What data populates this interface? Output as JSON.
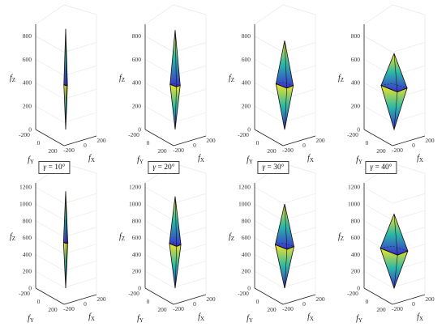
{
  "chart_data": [
    {
      "type": "3d-surface",
      "row": 1,
      "gamma": "10°",
      "zticks": [
        "0",
        "200",
        "400",
        "600",
        "800"
      ],
      "zrange": [
        0,
        900
      ],
      "apex_top": 860,
      "apex_bottom": 0,
      "mid_z": 380,
      "half_width": 25,
      "xticks": [
        "-200",
        "0",
        "200"
      ],
      "yticks": [
        "-200",
        "0",
        "200"
      ],
      "xlabel": "f_X",
      "ylabel": "f_Y",
      "zlabel": "f_Z"
    },
    {
      "type": "3d-surface",
      "row": 1,
      "gamma": "20°",
      "zticks": [
        "0",
        "200",
        "400",
        "600",
        "800"
      ],
      "zrange": [
        0,
        900
      ],
      "apex_top": 850,
      "apex_bottom": 0,
      "mid_z": 380,
      "half_width": 70,
      "xticks": [
        "-200",
        "0",
        "200"
      ],
      "yticks": [
        "-200",
        "0",
        "200"
      ],
      "xlabel": "f_X",
      "ylabel": "f_Y",
      "zlabel": "f_Z"
    },
    {
      "type": "3d-surface",
      "row": 1,
      "gamma": "30°",
      "zticks": [
        "0",
        "200",
        "400",
        "600",
        "800"
      ],
      "zrange": [
        0,
        900
      ],
      "apex_top": 760,
      "apex_bottom": 0,
      "mid_z": 380,
      "half_width": 120,
      "xticks": [
        "-200",
        "0",
        "200"
      ],
      "yticks": [
        "-200",
        "0",
        "200"
      ],
      "xlabel": "f_X",
      "ylabel": "f_Y",
      "zlabel": "f_Z"
    },
    {
      "type": "3d-surface",
      "row": 1,
      "gamma": "40°",
      "zticks": [
        "0",
        "200",
        "400",
        "600",
        "800"
      ],
      "zrange": [
        0,
        900
      ],
      "apex_top": 650,
      "apex_bottom": 0,
      "mid_z": 360,
      "half_width": 180,
      "xticks": [
        "-200",
        "0",
        "200"
      ],
      "yticks": [
        "-200",
        "0",
        "200"
      ],
      "xlabel": "f_X",
      "ylabel": "f_Y",
      "zlabel": "f_Z"
    },
    {
      "type": "3d-surface",
      "row": 2,
      "gamma": "10°",
      "zticks": [
        "0",
        "200",
        "400",
        "600",
        "800",
        "1000",
        "1200"
      ],
      "zrange": [
        0,
        1250
      ],
      "apex_top": 1150,
      "apex_bottom": 0,
      "mid_z": 540,
      "half_width": 30,
      "xticks": [
        "-200",
        "0",
        "200"
      ],
      "yticks": [
        "-200",
        "0",
        "200"
      ],
      "xlabel": "f_X",
      "ylabel": "f_Y",
      "zlabel": "f_Z"
    },
    {
      "type": "3d-surface",
      "row": 2,
      "gamma": "20°",
      "zticks": [
        "0",
        "200",
        "400",
        "600",
        "800",
        "1000",
        "1200"
      ],
      "zrange": [
        0,
        1250
      ],
      "apex_top": 1090,
      "apex_bottom": 0,
      "mid_z": 520,
      "half_width": 80,
      "xticks": [
        "-200",
        "0",
        "200"
      ],
      "yticks": [
        "-200",
        "0",
        "200"
      ],
      "xlabel": "f_X",
      "ylabel": "f_Y",
      "zlabel": "f_Z"
    },
    {
      "type": "3d-surface",
      "row": 2,
      "gamma": "30°",
      "zticks": [
        "0",
        "200",
        "400",
        "600",
        "800",
        "1000",
        "1200"
      ],
      "zrange": [
        0,
        1250
      ],
      "apex_top": 1000,
      "apex_bottom": 0,
      "mid_z": 500,
      "half_width": 130,
      "xticks": [
        "-200",
        "0",
        "200"
      ],
      "yticks": [
        "-200",
        "0",
        "200"
      ],
      "xlabel": "f_X",
      "ylabel": "f_Y",
      "zlabel": "f_Z"
    },
    {
      "type": "3d-surface",
      "row": 2,
      "gamma": "40°",
      "zticks": [
        "0",
        "200",
        "400",
        "600",
        "800",
        "1000",
        "1200"
      ],
      "zrange": [
        0,
        1250
      ],
      "apex_top": 880,
      "apex_bottom": 0,
      "mid_z": 450,
      "half_width": 190,
      "xticks": [
        "-200",
        "0",
        "200"
      ],
      "yticks": [
        "-200",
        "0",
        "200"
      ],
      "xlabel": "f_X",
      "ylabel": "f_Y",
      "zlabel": "f_Z"
    }
  ],
  "labels": [
    {
      "symbol": "γ",
      "eq": " = ",
      "value": "10°"
    },
    {
      "symbol": "γ",
      "eq": " = ",
      "value": "20°"
    },
    {
      "symbol": "γ",
      "eq": " = ",
      "value": "30°"
    },
    {
      "symbol": "γ",
      "eq": " = ",
      "value": "40°"
    }
  ],
  "axis_names": {
    "x": "f",
    "x_sub": "X",
    "y": "f",
    "y_sub": "Y",
    "z": "f",
    "z_sub": "Z"
  },
  "colors": {
    "top": "#f6e323",
    "mid": "#2ab7a8",
    "bottom": "#3b2fd0",
    "edge": "#111111",
    "grid": "#e6e6e6"
  }
}
